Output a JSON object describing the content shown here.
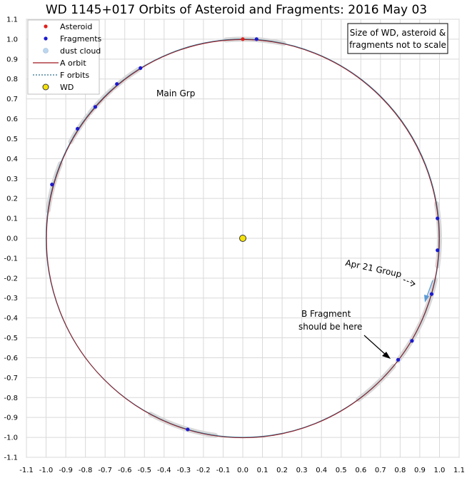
{
  "chart_data": {
    "type": "scatter",
    "title": "WD 1145+017 Orbits of Asteroid and Fragments: 2016 May 03",
    "xlabel": "",
    "ylabel": "",
    "xlim": [
      -1.1,
      1.1
    ],
    "ylim": [
      -1.1,
      1.1
    ],
    "x_ticks": [
      "-1.1",
      "-1.0",
      "-0.9",
      "-0.8",
      "-0.7",
      "-0.6",
      "-0.5",
      "-0.4",
      "-0.3",
      "-0.2",
      "-0.1",
      "0.0",
      "0.1",
      "0.2",
      "0.3",
      "0.4",
      "0.5",
      "0.6",
      "0.7",
      "0.8",
      "0.9",
      "1.0",
      "1.1"
    ],
    "y_ticks": [
      "1.1",
      "1.0",
      "0.9",
      "0.8",
      "0.7",
      "0.6",
      "0.5",
      "0.4",
      "0.3",
      "0.2",
      "0.1",
      "0.0",
      "-0.1",
      "-0.2",
      "-0.3",
      "-0.4",
      "-0.5",
      "-0.6",
      "-0.7",
      "-0.8",
      "-0.9",
      "-1.0",
      "-1.1"
    ],
    "grid": true,
    "legend_position": "top-left",
    "legend": [
      {
        "label": "Asteroid",
        "symbol": "dot",
        "color": "#e0201a"
      },
      {
        "label": "Fragments",
        "symbol": "dot",
        "color": "#1a1ad0"
      },
      {
        "label": "dust cloud",
        "symbol": "dot",
        "color": "#bcd6ee"
      },
      {
        "label": "A orbit",
        "symbol": "line",
        "color": "#a01820"
      },
      {
        "label": "F orbits",
        "symbol": "dash",
        "color": "#2d6f8c"
      },
      {
        "label": "WD",
        "symbol": "dot",
        "color": "#f4e20a"
      }
    ],
    "series": [
      {
        "name": "Asteroid",
        "color": "#e0201a",
        "points": [
          [
            0.0,
            1.0
          ]
        ]
      },
      {
        "name": "Fragments",
        "color": "#1a1ad0",
        "points": [
          [
            0.07,
            1.0
          ],
          [
            -0.52,
            0.855
          ],
          [
            -0.64,
            0.775
          ],
          [
            -0.75,
            0.66
          ],
          [
            -0.84,
            0.55
          ],
          [
            -0.97,
            0.27
          ],
          [
            0.99,
            0.1
          ],
          [
            0.99,
            -0.06
          ],
          [
            0.96,
            -0.28
          ],
          [
            0.86,
            -0.515
          ],
          [
            0.79,
            -0.61
          ],
          [
            -0.28,
            -0.96
          ]
        ]
      },
      {
        "name": "WD",
        "color": "#f4e20a",
        "points": [
          [
            0.0,
            0.0
          ]
        ]
      }
    ],
    "dust_arcs_deg": [
      [
        78,
        95
      ],
      [
        122,
        131
      ],
      [
        132,
        141
      ],
      [
        142,
        151
      ],
      [
        158,
        172
      ],
      [
        -8,
        10
      ],
      [
        -38,
        -12
      ],
      [
        -54,
        -40
      ],
      [
        -118,
        -98
      ]
    ],
    "annotations": {
      "note_box": [
        "Size of WD, asteroid &",
        "fragments not to scale"
      ],
      "main_grp": "Main Grp",
      "apr21": "Apr 21 Group",
      "b_fragment": [
        "B Fragment",
        "should be here"
      ]
    }
  }
}
